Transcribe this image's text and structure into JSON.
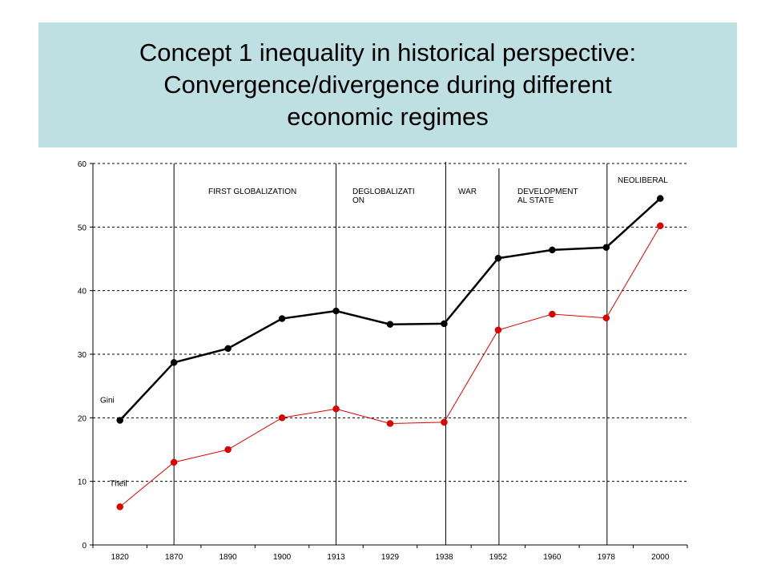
{
  "title": {
    "line1": "Concept 1 inequality in historical perspective:",
    "line2": "Convergence/divergence during different",
    "line3": "economic regimes"
  },
  "colors": {
    "title_background": "#bfe0e3",
    "gini": "#000000",
    "theil": "#e00000"
  },
  "chart_data": {
    "type": "line",
    "categories": [
      "1820",
      "1870",
      "1890",
      "1900",
      "1913",
      "1929",
      "1938",
      "1952",
      "1960",
      "1978",
      "2000"
    ],
    "series": [
      {
        "name": "Gini",
        "values": [
          19.6,
          28.7,
          30.9,
          35.6,
          36.8,
          34.7,
          34.8,
          45.1,
          46.4,
          46.8,
          54.5
        ]
      },
      {
        "name": "Theil",
        "values": [
          6.0,
          13.0,
          15.0,
          20.0,
          21.4,
          19.1,
          19.3,
          33.8,
          36.3,
          35.7,
          50.2
        ]
      }
    ],
    "ylim": [
      0,
      60
    ],
    "yticks": [
      "0",
      "10",
      "20",
      "30",
      "40",
      "50",
      "60"
    ],
    "grid": "horizontal dashed",
    "regimes": [
      {
        "lines": [
          "FIRST GLOBALIZATION"
        ]
      },
      {
        "lines": [
          "DEGLOBALIZATI",
          "ON"
        ]
      },
      {
        "lines": [
          "WAR"
        ]
      },
      {
        "lines": [
          "DEVELOPMENT",
          "AL STATE"
        ]
      },
      {
        "lines": [
          "NEOLIBERAL"
        ]
      }
    ]
  }
}
